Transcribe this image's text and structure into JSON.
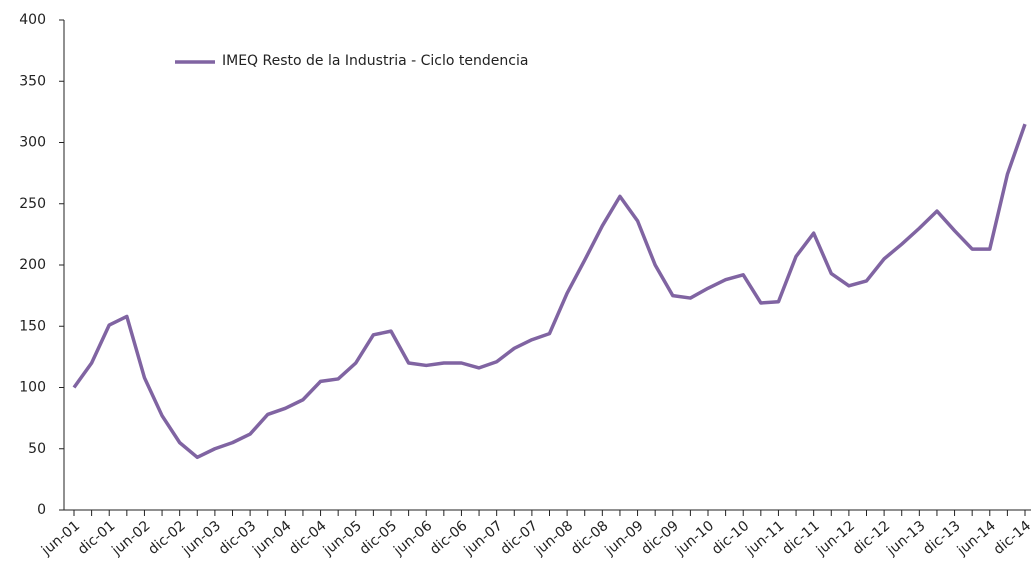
{
  "chart_data": {
    "type": "line",
    "legend": "IMEQ Resto de la Industria - Ciclo tendencia",
    "categories": [
      "jun-01",
      null,
      "dic-01",
      null,
      "jun-02",
      null,
      "dic-02",
      null,
      "jun-03",
      null,
      "dic-03",
      null,
      "jun-04",
      null,
      "dic-04",
      null,
      "jun-05",
      null,
      "dic-05",
      null,
      "jun-06",
      null,
      "dic-06",
      null,
      "jun-07",
      null,
      "dic-07",
      null,
      "jun-08",
      null,
      "dic-08",
      null,
      "jun-09",
      null,
      "dic-09",
      null,
      "jun-10",
      null,
      "dic-10",
      null,
      "jun-11",
      null,
      "dic-11",
      null,
      "jun-12",
      null,
      "dic-12",
      null,
      "jun-13",
      null,
      "dic-13",
      null,
      "jun-14",
      null,
      "dic-14"
    ],
    "series": [
      {
        "name": "IMEQ Resto de la Industria - Ciclo tendencia",
        "color": "#8064a2",
        "values": [
          100,
          120,
          151,
          158,
          108,
          77,
          55,
          43,
          50,
          55,
          62,
          78,
          83,
          90,
          105,
          107,
          120,
          143,
          146,
          120,
          118,
          120,
          120,
          116,
          121,
          132,
          139,
          144,
          177,
          204,
          232,
          256,
          236,
          200,
          175,
          173,
          181,
          188,
          192,
          169,
          170,
          207,
          226,
          193,
          183,
          187,
          205,
          217,
          230,
          244,
          228,
          213,
          213,
          274,
          315
        ]
      }
    ],
    "ylim": [
      0,
      400
    ],
    "yticks": [
      0,
      50,
      100,
      150,
      200,
      250,
      300,
      350,
      400
    ]
  }
}
